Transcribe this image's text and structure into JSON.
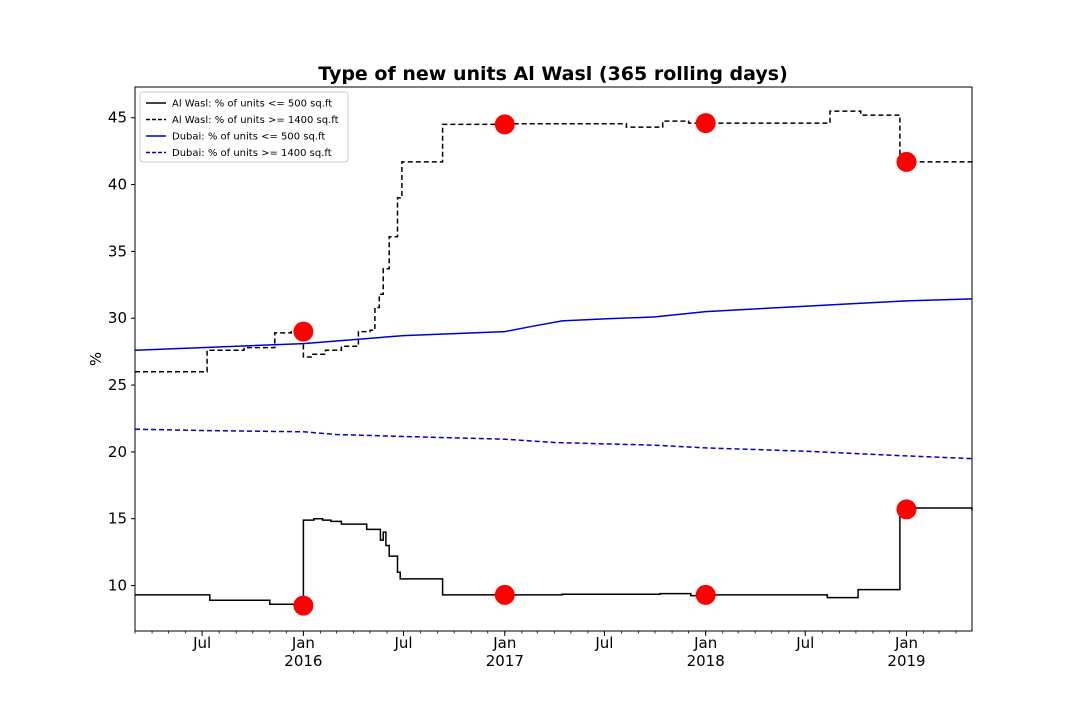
{
  "chart_data": {
    "type": "line",
    "title": "Type of new units Al Wasl (365 rolling days)",
    "xlabel": "",
    "ylabel": "%",
    "xlim": [
      "2015-03-01",
      "2019-04-30"
    ],
    "ylim": [
      6.6,
      47.3
    ],
    "grid": false,
    "legend_position": "top-left",
    "yticks": [
      10,
      15,
      20,
      25,
      30,
      35,
      40,
      45
    ],
    "xticks": [
      {
        "date": "2015-07-01",
        "label": "Jul",
        "sublabel": ""
      },
      {
        "date": "2016-01-01",
        "label": "Jan",
        "sublabel": "2016"
      },
      {
        "date": "2016-07-01",
        "label": "Jul",
        "sublabel": ""
      },
      {
        "date": "2017-01-01",
        "label": "Jan",
        "sublabel": "2017"
      },
      {
        "date": "2017-07-01",
        "label": "Jul",
        "sublabel": ""
      },
      {
        "date": "2018-01-01",
        "label": "Jan",
        "sublabel": "2018"
      },
      {
        "date": "2018-07-01",
        "label": "Jul",
        "sublabel": ""
      },
      {
        "date": "2019-01-01",
        "label": "Jan",
        "sublabel": "2019"
      }
    ],
    "series": [
      {
        "name": "Al Wasl: % of units <= 500 sq.ft",
        "color": "#000000",
        "dash": "solid",
        "step": true,
        "points": [
          [
            "2015-03-01",
            9.3
          ],
          [
            "2015-07-15",
            8.9
          ],
          [
            "2015-11-01",
            8.6
          ],
          [
            "2016-01-01",
            14.9
          ],
          [
            "2016-01-20",
            15.0
          ],
          [
            "2016-02-05",
            14.9
          ],
          [
            "2016-02-20",
            14.8
          ],
          [
            "2016-03-10",
            14.6
          ],
          [
            "2016-04-25",
            14.2
          ],
          [
            "2016-05-20",
            13.4
          ],
          [
            "2016-05-25",
            14.0
          ],
          [
            "2016-05-30",
            13.0
          ],
          [
            "2016-06-05",
            12.2
          ],
          [
            "2016-06-20",
            11.0
          ],
          [
            "2016-06-25",
            10.5
          ],
          [
            "2016-09-10",
            9.3
          ],
          [
            "2017-04-15",
            9.35
          ],
          [
            "2017-10-10",
            9.4
          ],
          [
            "2017-12-05",
            9.25
          ],
          [
            "2017-12-20",
            9.35
          ],
          [
            "2018-01-05",
            9.3
          ],
          [
            "2018-08-10",
            9.1
          ],
          [
            "2018-10-05",
            9.7
          ],
          [
            "2018-12-20",
            15.8
          ],
          [
            "2019-04-30",
            15.6
          ]
        ]
      },
      {
        "name": "Al Wasl: % of units >= 1400 sq.ft",
        "color": "#000000",
        "dash": "dashed",
        "step": true,
        "points": [
          [
            "2015-03-01",
            26.0
          ],
          [
            "2015-07-10",
            27.6
          ],
          [
            "2015-09-15",
            27.8
          ],
          [
            "2015-11-10",
            28.9
          ],
          [
            "2015-12-10",
            29.1
          ],
          [
            "2016-01-01",
            27.1
          ],
          [
            "2016-01-15",
            27.3
          ],
          [
            "2016-02-10",
            27.6
          ],
          [
            "2016-03-10",
            27.9
          ],
          [
            "2016-04-10",
            29.0
          ],
          [
            "2016-05-01",
            29.1
          ],
          [
            "2016-05-10",
            30.8
          ],
          [
            "2016-05-18",
            31.8
          ],
          [
            "2016-05-25",
            33.7
          ],
          [
            "2016-06-05",
            36.1
          ],
          [
            "2016-06-20",
            39.0
          ],
          [
            "2016-06-28",
            41.7
          ],
          [
            "2016-09-10",
            44.5
          ],
          [
            "2017-01-01",
            44.55
          ],
          [
            "2017-08-10",
            44.3
          ],
          [
            "2017-10-15",
            44.75
          ],
          [
            "2017-12-01",
            44.6
          ],
          [
            "2018-08-15",
            45.5
          ],
          [
            "2018-10-10",
            45.2
          ],
          [
            "2018-12-20",
            41.7
          ],
          [
            "2019-04-30",
            41.55
          ]
        ]
      },
      {
        "name": "Dubai: % of units <= 500 sq.ft",
        "color": "#0000cc",
        "dash": "solid",
        "step": false,
        "points": [
          [
            "2015-03-01",
            27.6
          ],
          [
            "2015-07-01",
            27.8
          ],
          [
            "2016-01-01",
            28.1
          ],
          [
            "2016-07-01",
            28.7
          ],
          [
            "2017-01-01",
            29.0
          ],
          [
            "2017-02-20",
            29.4
          ],
          [
            "2017-04-15",
            29.8
          ],
          [
            "2017-07-01",
            29.95
          ],
          [
            "2017-10-01",
            30.1
          ],
          [
            "2018-01-01",
            30.5
          ],
          [
            "2018-07-01",
            30.9
          ],
          [
            "2018-10-01",
            31.1
          ],
          [
            "2019-01-01",
            31.3
          ],
          [
            "2019-04-30",
            31.45
          ]
        ]
      },
      {
        "name": "Dubai: % of units >= 1400 sq.ft",
        "color": "#0000cc",
        "dash": "dashed",
        "step": false,
        "points": [
          [
            "2015-03-01",
            21.7
          ],
          [
            "2015-07-01",
            21.6
          ],
          [
            "2016-01-01",
            21.5
          ],
          [
            "2016-03-01",
            21.3
          ],
          [
            "2016-07-01",
            21.15
          ],
          [
            "2017-01-01",
            20.95
          ],
          [
            "2017-04-01",
            20.7
          ],
          [
            "2017-10-01",
            20.5
          ],
          [
            "2018-01-01",
            20.3
          ],
          [
            "2018-07-01",
            20.05
          ],
          [
            "2019-01-01",
            19.7
          ],
          [
            "2019-04-30",
            19.5
          ]
        ]
      }
    ],
    "markers": {
      "color": "#ff0000",
      "points": [
        [
          "2016-01-01",
          8.5
        ],
        [
          "2016-01-01",
          29.0
        ],
        [
          "2017-01-01",
          9.3
        ],
        [
          "2017-01-01",
          44.5
        ],
        [
          "2018-01-01",
          9.3
        ],
        [
          "2018-01-01",
          44.6
        ],
        [
          "2019-01-01",
          15.7
        ],
        [
          "2019-01-01",
          41.7
        ]
      ]
    }
  }
}
